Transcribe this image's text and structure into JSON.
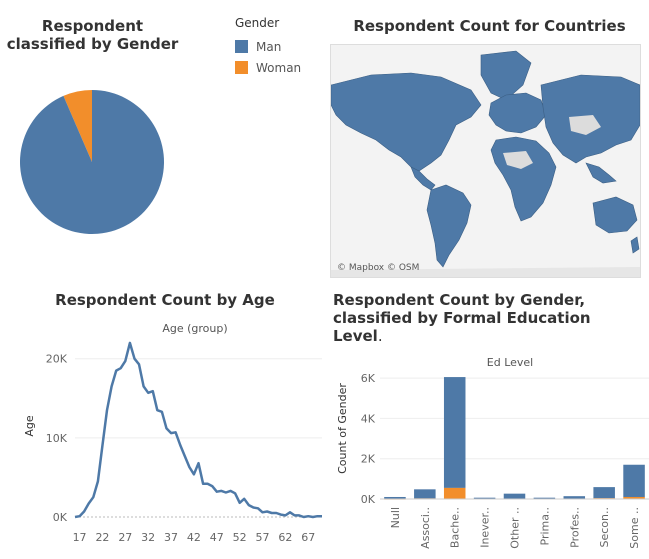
{
  "colors": {
    "man": "#4e79a7",
    "woman": "#f28e2b"
  },
  "pie": {
    "title": "Respondent classified by Gender",
    "chart_data": {
      "type": "pie",
      "slices": [
        {
          "name": "Man",
          "value": 93.5
        },
        {
          "name": "Woman",
          "value": 6.5
        }
      ]
    }
  },
  "legend": {
    "title": "Gender",
    "items": [
      {
        "label": "Man",
        "color": "#4e79a7"
      },
      {
        "label": "Woman",
        "color": "#f28e2b"
      }
    ]
  },
  "map": {
    "title": "Respondent Count for Countries",
    "credit": "© Mapbox © OSM"
  },
  "age": {
    "title": "Respondent Count by Age",
    "subtitle": "Age (group)",
    "ylabel": "Age",
    "yticks": [
      "0K",
      "10K",
      "20K"
    ],
    "xticks": [
      "17",
      "22",
      "27",
      "32",
      "37",
      "42",
      "47",
      "52",
      "57",
      "62",
      "67"
    ]
  },
  "ed": {
    "title": "Respondent Count by Gender, classified by Formal Education Level.",
    "subtitle": "Ed Level",
    "ylabel": "Count of Gender",
    "yticks": [
      "0K",
      "2K",
      "4K",
      "6K"
    ],
    "categories": [
      "Null",
      "Associ..",
      "Bache..",
      "Inever..",
      "Other ..",
      "Prima..",
      "Profes..",
      "Secon..",
      "Some .."
    ]
  },
  "chart_data": [
    {
      "type": "pie",
      "title": "Respondent classified by Gender",
      "slices": [
        {
          "name": "Man",
          "value": 93.5
        },
        {
          "name": "Woman",
          "value": 6.5
        }
      ]
    },
    {
      "type": "line",
      "title": "Respondent Count by Age",
      "xlabel": "Age (group)",
      "ylabel": "Age",
      "ylim": [
        0,
        23000
      ],
      "x": [
        16,
        17,
        18,
        19,
        20,
        21,
        22,
        23,
        24,
        25,
        26,
        27,
        28,
        29,
        30,
        31,
        32,
        33,
        34,
        35,
        36,
        37,
        38,
        39,
        40,
        41,
        42,
        43,
        44,
        45,
        46,
        47,
        48,
        49,
        50,
        51,
        52,
        53,
        54,
        55,
        56,
        57,
        58,
        59,
        60,
        61,
        62,
        63,
        64,
        65,
        66,
        67,
        68,
        69,
        70
      ],
      "y": [
        0,
        100,
        700,
        1700,
        2500,
        4500,
        9000,
        13500,
        16500,
        18500,
        18800,
        19700,
        22000,
        20000,
        19300,
        16500,
        15700,
        15900,
        13500,
        13300,
        11200,
        10600,
        10700,
        9100,
        7700,
        6300,
        5400,
        6800,
        4200,
        4200,
        3900,
        3200,
        3300,
        3100,
        3300,
        3000,
        1800,
        2300,
        1500,
        1200,
        1100,
        600,
        700,
        500,
        500,
        300,
        200,
        600,
        200,
        200,
        0,
        100,
        0,
        100,
        100
      ]
    },
    {
      "type": "bar",
      "title": "Respondent Count by Gender, classified by Formal Education Level.",
      "xlabel": "Ed Level",
      "ylabel": "Count of Gender",
      "ylim": [
        0,
        6500
      ],
      "categories": [
        "Null",
        "Associ..",
        "Bache..",
        "Inever..",
        "Other ..",
        "Prima..",
        "Profes..",
        "Secon..",
        "Some .."
      ],
      "series": [
        {
          "name": "Man",
          "values": [
            100,
            450,
            5500,
            60,
            250,
            60,
            130,
            550,
            1600
          ]
        },
        {
          "name": "Woman",
          "values": [
            0,
            30,
            550,
            5,
            15,
            5,
            10,
            40,
            100
          ]
        }
      ]
    }
  ]
}
